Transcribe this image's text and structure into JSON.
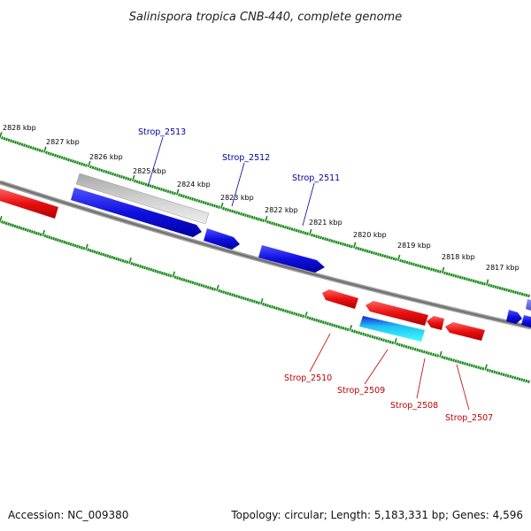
{
  "title": "Salinispora tropica CNB-440, complete genome",
  "footer": {
    "accession": "Accession: NC_009380",
    "summary": "Topology: circular; Length: 5,183,331 bp; Genes: 4,596"
  },
  "colors": {
    "forward_gene": "#1010e0",
    "reverse_gene": "#e81010",
    "backbone": "#808080",
    "tick": "#1a8a1a",
    "label_forward": "#0000a0",
    "label_reverse": "#c00000"
  },
  "kbp_labels": [
    "2828 kbp",
    "2827 kbp",
    "2826 kbp",
    "2825 kbp",
    "2824 kbp",
    "2823 kbp",
    "2822 kbp",
    "2821 kbp",
    "2820 kbp",
    "2819 kbp",
    "2818 kbp",
    "2817 kbp"
  ],
  "forward_gene_labels": [
    "Strop_2513",
    "Strop_2512",
    "Strop_2511"
  ],
  "reverse_gene_labels": [
    "Strop_2510",
    "Strop_2509",
    "Strop_2508",
    "Strop_2507"
  ]
}
